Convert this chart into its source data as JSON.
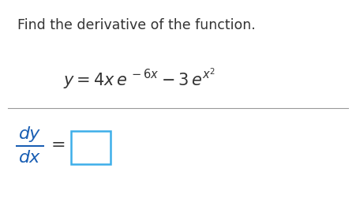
{
  "background_color": "#ffffff",
  "title_text": "Find the derivative of the function.",
  "title_fontsize": 12.5,
  "title_color": "#333333",
  "equation_fontsize": 14,
  "line_color": "#999999",
  "line_width": 0.8,
  "frac_color": "#1a5fb4",
  "box_color": "#3daee9",
  "text_color": "#333333"
}
